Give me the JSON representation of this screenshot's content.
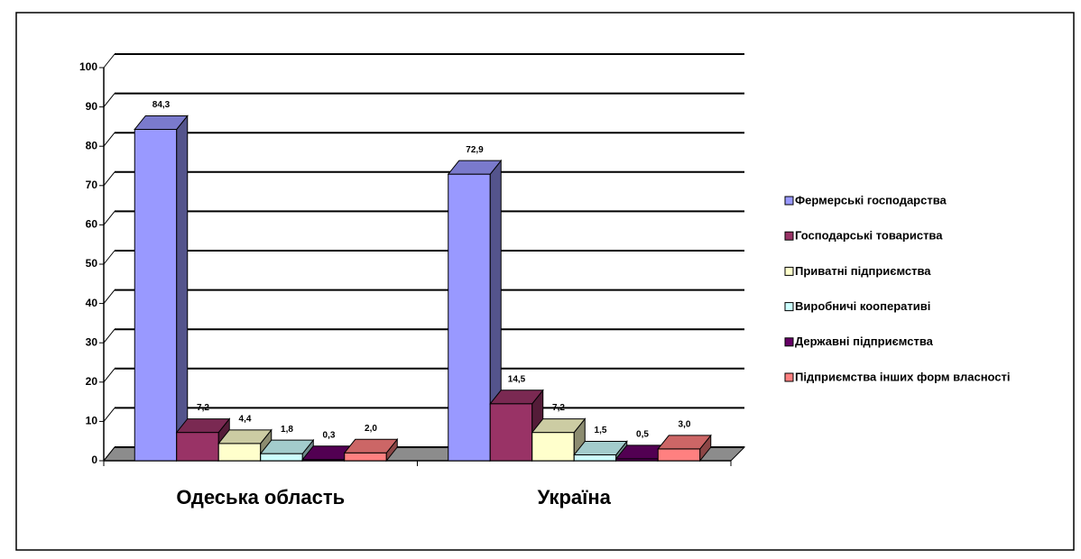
{
  "chart_data": {
    "type": "bar3d",
    "categories": [
      "Одеська область",
      "Україна"
    ],
    "series": [
      {
        "name": "Фермерські господарства",
        "color": "#9999FF",
        "values": [
          84.3,
          72.9
        ],
        "value_labels": [
          "84,3",
          "72,9"
        ]
      },
      {
        "name": "Господарські товариства",
        "color": "#993366",
        "values": [
          7.2,
          14.5
        ],
        "value_labels": [
          "7,2",
          "14,5"
        ]
      },
      {
        "name": "Приватні підприємства",
        "color": "#FFFFCC",
        "values": [
          4.4,
          7.2
        ],
        "value_labels": [
          "4,4",
          "7,2"
        ]
      },
      {
        "name": "Виробничі кооперативі",
        "color": "#CCFFFF",
        "values": [
          1.8,
          1.5
        ],
        "value_labels": [
          "1,8",
          "1,5"
        ]
      },
      {
        "name": "Державні підприємства",
        "color": "#660066",
        "values": [
          0.3,
          0.5
        ],
        "value_labels": [
          "0,3",
          "0,5"
        ]
      },
      {
        "name": "Підприємства інших форм власності",
        "color": "#FF8080",
        "values": [
          2.0,
          3.0
        ],
        "value_labels": [
          "2,0",
          "3,0"
        ]
      }
    ],
    "ylim": [
      0,
      100
    ],
    "yticks": [
      0,
      10,
      20,
      30,
      40,
      50,
      60,
      70,
      80,
      90,
      100
    ],
    "grid": true,
    "legend": "right"
  }
}
